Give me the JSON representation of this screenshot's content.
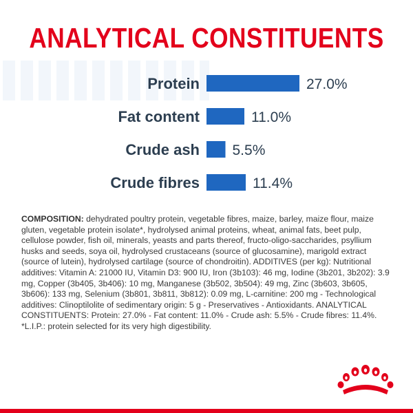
{
  "chart_data": {
    "type": "bar",
    "orientation": "horizontal",
    "title": "ANALYTICAL CONSTITUENTS",
    "categories": [
      "Protein",
      "Fat content",
      "Crude ash",
      "Crude fibres"
    ],
    "values": [
      27.0,
      11.0,
      5.5,
      11.4
    ],
    "value_labels": [
      "27.0%",
      "11.0%",
      "5.5%",
      "11.4%"
    ],
    "unit": "%",
    "bar_color": "#1f67c0",
    "grid": false,
    "legend": "none"
  },
  "composition": {
    "heading": "COMPOSITION:",
    "text": " dehydrated poultry protein, vegetable fibres, maize, barley, maize flour, maize gluten, vegetable protein isolate*, hydrolysed animal proteins, wheat, animal fats, beet pulp, cellulose powder, fish oil, minerals, yeasts and parts thereof, fructo-oligo-saccharides, psyllium husks and seeds, soya oil, hydrolysed crustaceans (source of glucosamine), marigold extract (source of lutein), hydrolysed cartilage (source of chondroitin). ADDITIVES (per kg): Nutritional additives: Vitamin A: 21000 IU, Vitamin D3: 900 IU, Iron (3b103): 46 mg, Iodine (3b201, 3b202): 3.9 mg, Copper (3b405, 3b406): 10 mg, Manganese (3b502, 3b504): 49 mg, Zinc (3b603, 3b605, 3b606): 133 mg, Selenium (3b801, 3b811, 3b812): 0.09 mg, L-carnitine: 200 mg - Technological additives: Clinoptilolite of sedimentary origin: 5 g - Preservatives - Antioxidants. ANALYTICAL CONSTITUENTS: Protein: 27.0% - Fat content: 11.0% - Crude ash: 5.5% - Crude fibres: 11.4%. *L.I.P.: protein selected for its very high digestibility."
  },
  "colors": {
    "title": "#e3001b",
    "text": "#2c3e50",
    "brand_red": "#e3001b"
  },
  "logo": {
    "icon": "crown-icon"
  }
}
